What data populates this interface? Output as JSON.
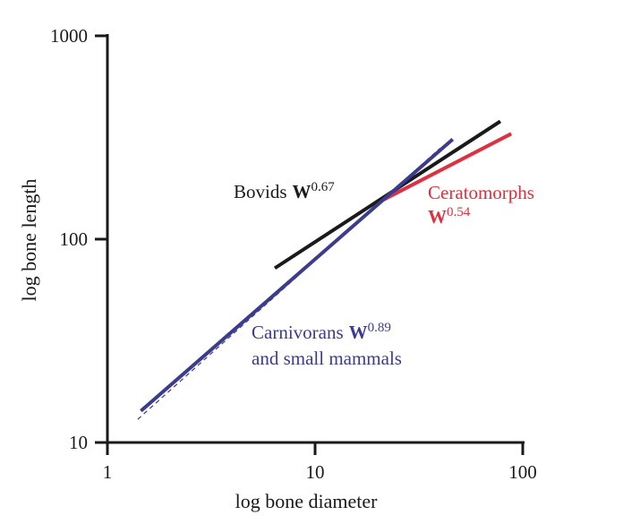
{
  "chart_data": {
    "type": "line",
    "xlabel": "log bone diameter",
    "ylabel": "log bone length",
    "xscale": "log",
    "yscale": "log",
    "xlim": [
      1,
      100
    ],
    "ylim": [
      10,
      1000
    ],
    "xticks": [
      {
        "value": 1,
        "label": "1"
      },
      {
        "value": 10,
        "label": "10"
      },
      {
        "value": 100,
        "label": "100"
      }
    ],
    "yticks": [
      {
        "value": 10,
        "label": "10"
      },
      {
        "value": 100,
        "label": "100"
      },
      {
        "value": 1000,
        "label": "1000"
      }
    ],
    "grid": false,
    "series": [
      {
        "key": "carnivorans",
        "color": "#3b3b8f",
        "style": "solid",
        "x": [
          1.45,
          46
        ],
        "y": [
          14.3,
          310
        ]
      },
      {
        "key": "bovids",
        "color": "#1a1a1a",
        "style": "solid",
        "x": [
          6.4,
          78
        ],
        "y": [
          72,
          380
        ]
      },
      {
        "key": "ceratomorphs",
        "color": "#e03040",
        "style": "solid",
        "x": [
          21,
          88
        ],
        "y": [
          155,
          330
        ]
      },
      {
        "key": "overall",
        "color": "#4a4a7a",
        "style": "dashed",
        "x": [
          1.4,
          40
        ],
        "y": [
          13,
          280
        ]
      }
    ],
    "annotations": [
      {
        "key": "bovids",
        "lines": [
          {
            "name": "Bovids",
            "bold": "W",
            "sup": "0.67"
          }
        ],
        "color": "#1a1a1a"
      },
      {
        "key": "ceratomorphs",
        "lines": [
          {
            "name": "Ceratomorphs"
          },
          {
            "bold": "W",
            "sup": "0.54"
          }
        ],
        "color": "#e03040"
      },
      {
        "key": "carnivorans",
        "lines": [
          {
            "name": "Carnivorans",
            "bold": "W",
            "sup": "0.89"
          },
          {
            "name": "and small mammals"
          }
        ],
        "color": "#3b3b8f"
      }
    ]
  }
}
